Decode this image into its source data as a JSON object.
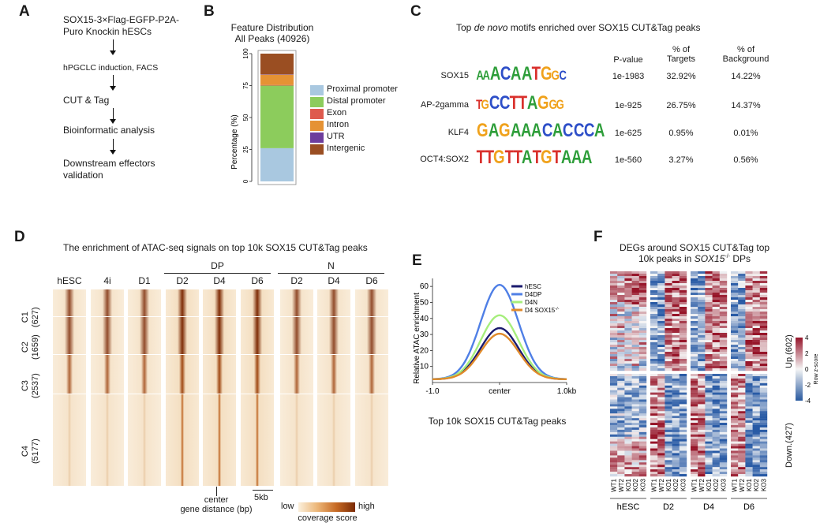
{
  "panelA": {
    "label": "A",
    "steps": [
      "SOX15-3×Flag-EGFP-P2A-\nPuro Knockin hESCs",
      "hPGCLC induction, FACS",
      "CUT & Tag",
      "Bioinformatic analysis",
      "Downstream effectors\n validation"
    ]
  },
  "panelB": {
    "label": "B",
    "title_line1": "Feature Distribution",
    "title_line2": "All Peaks (40926)",
    "ylabel": "Percentage (%)",
    "yticks": [
      "0",
      "25",
      "50",
      "75",
      "100"
    ],
    "legend": [
      {
        "name": "Proximal promoter",
        "color": "#a9c8e0"
      },
      {
        "name": "Distal promoter",
        "color": "#8ccc5c"
      },
      {
        "name": "Exon",
        "color": "#de5a4e"
      },
      {
        "name": "Intron",
        "color": "#e59234"
      },
      {
        "name": "UTR",
        "color": "#6d3d9c"
      },
      {
        "name": "Intergenic",
        "color": "#9a4e22"
      }
    ]
  },
  "chart_data": {
    "type": "bar",
    "title": "Feature Distribution All Peaks (40926)",
    "ylabel": "Percentage (%)",
    "ylim": [
      0,
      100
    ],
    "categories": [
      "All Peaks"
    ],
    "series": [
      {
        "name": "Proximal promoter",
        "values": [
          26
        ]
      },
      {
        "name": "Distal promoter",
        "values": [
          49
        ]
      },
      {
        "name": "Exon",
        "values": [
          0.5
        ]
      },
      {
        "name": "Intron",
        "values": [
          8
        ]
      },
      {
        "name": "UTR",
        "values": [
          0.3
        ]
      },
      {
        "name": "Intergenic",
        "values": [
          16.2
        ]
      }
    ]
  },
  "panelC": {
    "label": "C",
    "title_pre": "Top ",
    "title_em": "de novo",
    "title_post": " motifs enriched over SOX15 CUT&Tag peaks",
    "col_pvalue": "P-value",
    "col_targets": "% of\nTargets",
    "col_background": "% of\nBackground",
    "rows": [
      {
        "name": "SOX15",
        "logo": "AAACAATGGC",
        "pvalue": "1e-1983",
        "targets": "32.92%",
        "background": "14.22%"
      },
      {
        "name": "AP-2gamma",
        "logo": "TGCCTTAGGG",
        "pvalue": "1e-925",
        "targets": "26.75%",
        "background": "14.37%"
      },
      {
        "name": "KLF4",
        "logo": "GAGAAACACCCA",
        "pvalue": "1e-625",
        "targets": "0.95%",
        "background": "0.01%"
      },
      {
        "name": "OCT4:SOX2",
        "logo": "TTGTTATGTAAA",
        "pvalue": "1e-560",
        "targets": "3.27%",
        "background": "0.56%"
      }
    ]
  },
  "panelD": {
    "label": "D",
    "title": "The enrichment of ATAC-seq signals on top 10k  SOX15 CUT&Tag peaks",
    "group_dp": "DP",
    "group_n": "N",
    "columns": [
      "hESC",
      "4i",
      "D1",
      "D2",
      "D4",
      "D6",
      "D2",
      "D4",
      "D6"
    ],
    "clusters": [
      {
        "name": "C1",
        "count": "(627)"
      },
      {
        "name": "C2",
        "count": "(1659)"
      },
      {
        "name": "C3",
        "count": "(2537)"
      },
      {
        "name": "C4",
        "count": "(5177)"
      }
    ],
    "center_label": "center",
    "xlabel": "gene distance (bp)",
    "scale_label": "5kb",
    "legend_low": "low",
    "legend_high": "high",
    "legend_title": "coverage score"
  },
  "panelE": {
    "label": "E",
    "ylabel": "Relative ATAC enrichment",
    "yticks": [
      "10",
      "20",
      "30",
      "40",
      "50",
      "60"
    ],
    "xticks": [
      "-1.0",
      "center",
      "1.0kb"
    ],
    "caption": "Top 10k SOX15 CUT&Tag peaks",
    "series": [
      {
        "name": "hESC",
        "peak": 34,
        "color": "#1a1a6e"
      },
      {
        "name": "D4DP",
        "peak": 61,
        "color": "#4f7fe6"
      },
      {
        "name": "D4N",
        "peak": 42,
        "color": "#a6ee7c"
      },
      {
        "name": "D4 SOX15",
        "peak": 30.5,
        "color": "#e08a2a"
      }
    ],
    "baseline": 2,
    "superscript": "-/-"
  },
  "panelF": {
    "label": "F",
    "title_line1": "DEGs around SOX15 CUT&Tag top",
    "title_line2_pre": "10k peaks in ",
    "title_line2_gene": "SOX15",
    "title_line2_sup": "-/-",
    "title_line2_post": " DPs",
    "groups": [
      "hESC",
      "D2",
      "D4",
      "D6"
    ],
    "samples": [
      "WT1",
      "WT2",
      "KO1",
      "KO2",
      "KO3"
    ],
    "row_up": "Up.(602)",
    "row_down": "Down.(427)",
    "scale_ticks": [
      "4",
      "2",
      "0",
      "-2",
      "-4"
    ],
    "scale_title": "Row z-score"
  }
}
